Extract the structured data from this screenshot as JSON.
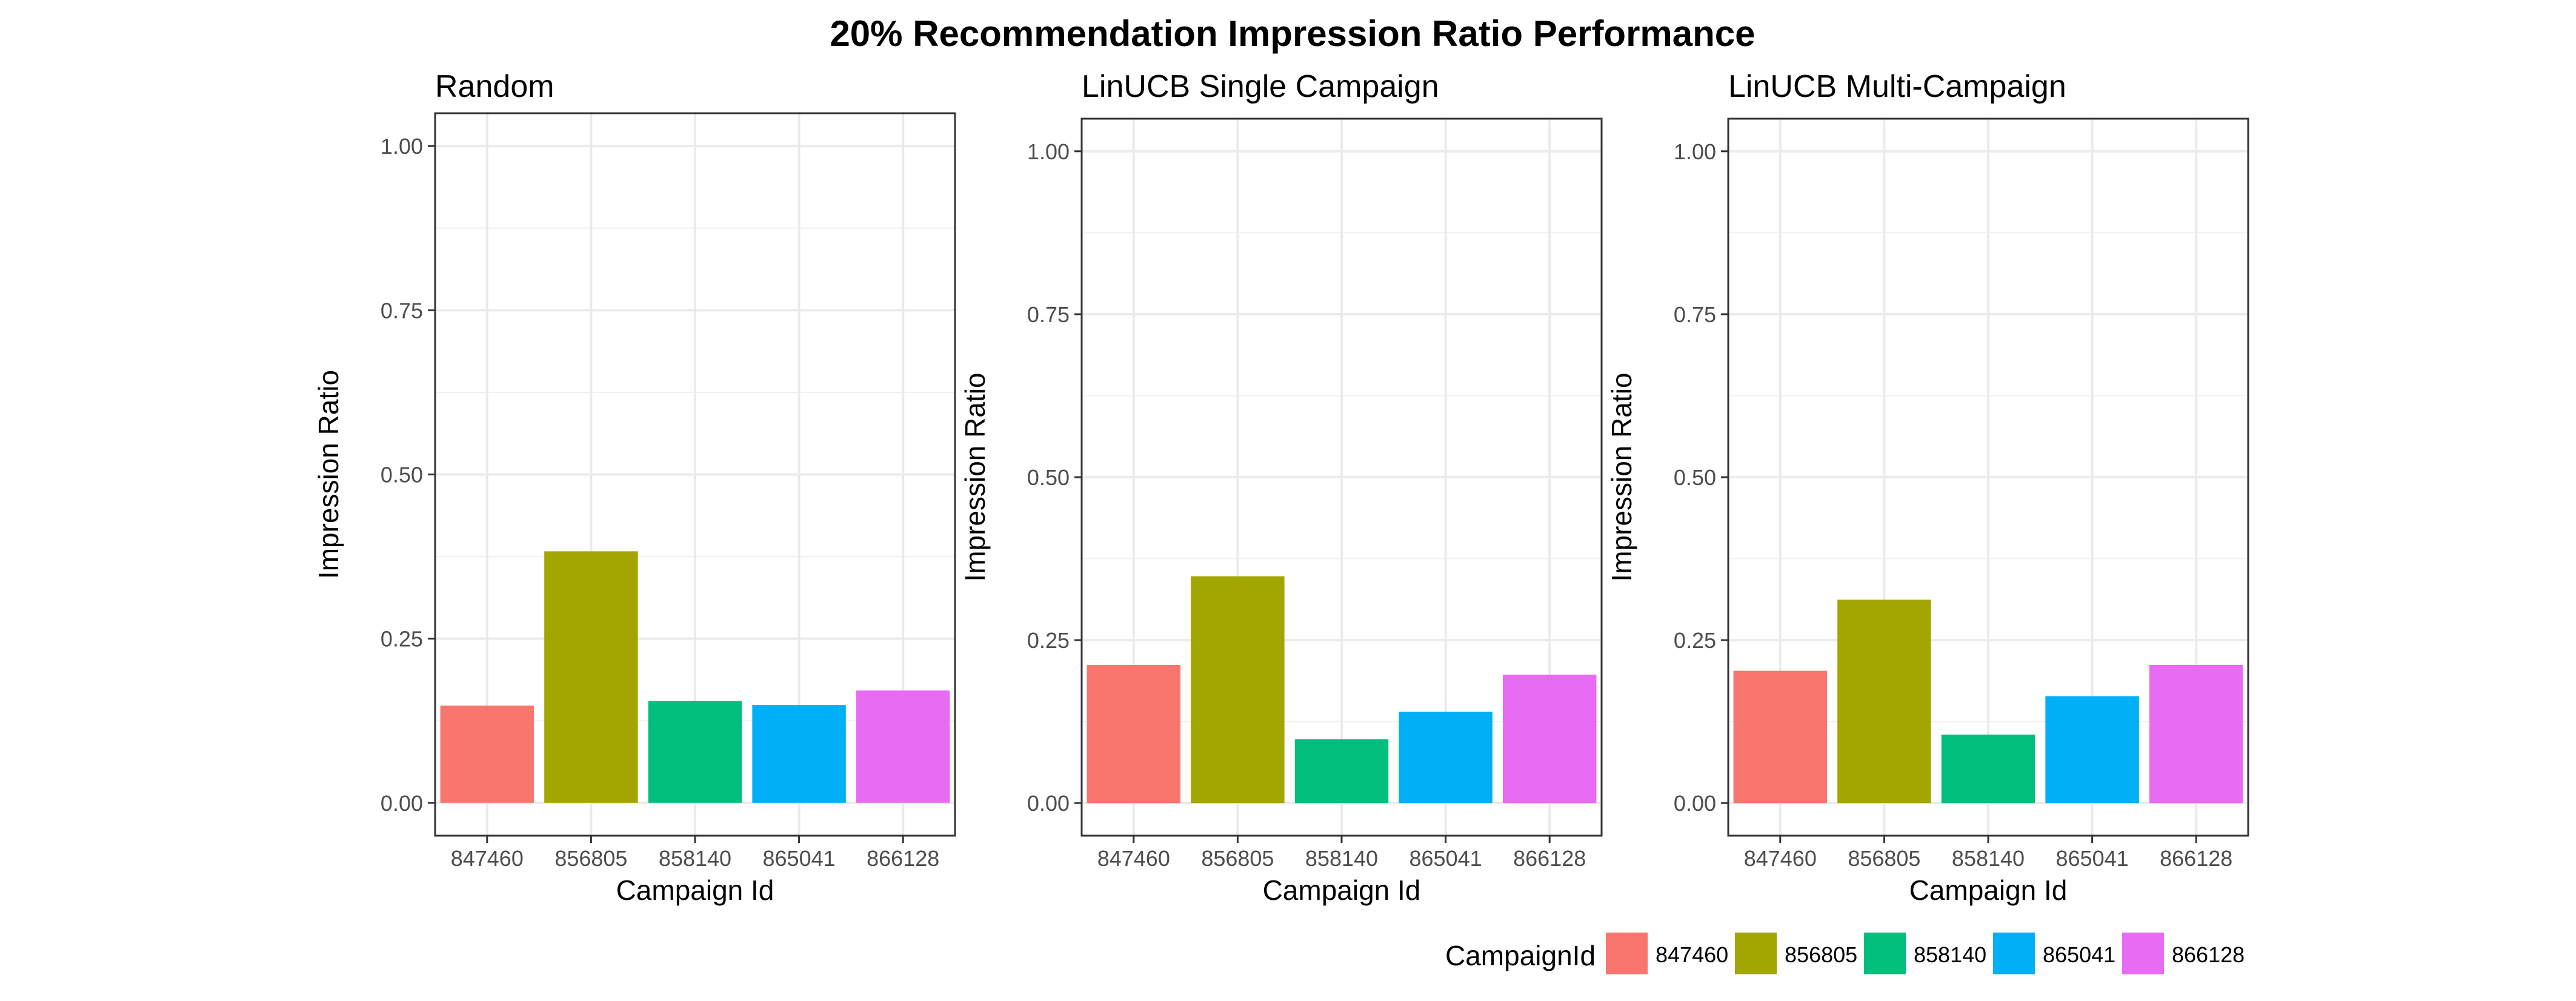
{
  "title": "20% Recommendation Impression Ratio Performance",
  "legend": {
    "title": "CampaignId",
    "position": "bottom-right",
    "entries": [
      {
        "label": "847460",
        "color": "#F8766D"
      },
      {
        "label": "856805",
        "color": "#A3A500"
      },
      {
        "label": "858140",
        "color": "#00BF7D"
      },
      {
        "label": "865041",
        "color": "#00B0F6"
      },
      {
        "label": "866128",
        "color": "#E76BF3"
      }
    ]
  },
  "chart_data": [
    {
      "type": "bar",
      "title": "Random",
      "xlabel": "Campaign Id",
      "ylabel": "Impression Ratio",
      "categories": [
        "847460",
        "856805",
        "858140",
        "865041",
        "866128"
      ],
      "values": [
        0.148,
        0.383,
        0.155,
        0.149,
        0.171
      ],
      "ylim": [
        -0.05,
        1.05
      ],
      "yticks": [
        0.0,
        0.25,
        0.5,
        0.75,
        1.0
      ],
      "ytick_labels": [
        "0.00",
        "0.25",
        "0.50",
        "0.75",
        "1.00"
      ],
      "grid": true
    },
    {
      "type": "bar",
      "title": "LinUCB Single Campaign",
      "xlabel": "Campaign Id",
      "ylabel": "Impression Ratio",
      "categories": [
        "847460",
        "856805",
        "858140",
        "865041",
        "866128"
      ],
      "values": [
        0.212,
        0.348,
        0.098,
        0.14,
        0.197
      ],
      "ylim": [
        -0.05,
        1.05
      ],
      "yticks": [
        0.0,
        0.25,
        0.5,
        0.75,
        1.0
      ],
      "ytick_labels": [
        "0.00",
        "0.25",
        "0.50",
        "0.75",
        "1.00"
      ],
      "grid": true
    },
    {
      "type": "bar",
      "title": "LinUCB Multi-Campaign",
      "xlabel": "Campaign Id",
      "ylabel": "Impression Ratio",
      "categories": [
        "847460",
        "856805",
        "858140",
        "865041",
        "866128"
      ],
      "values": [
        0.203,
        0.312,
        0.105,
        0.164,
        0.212
      ],
      "ylim": [
        -0.05,
        1.05
      ],
      "yticks": [
        0.0,
        0.25,
        0.5,
        0.75,
        1.0
      ],
      "ytick_labels": [
        "0.00",
        "0.25",
        "0.50",
        "0.75",
        "1.00"
      ],
      "grid": true
    }
  ]
}
